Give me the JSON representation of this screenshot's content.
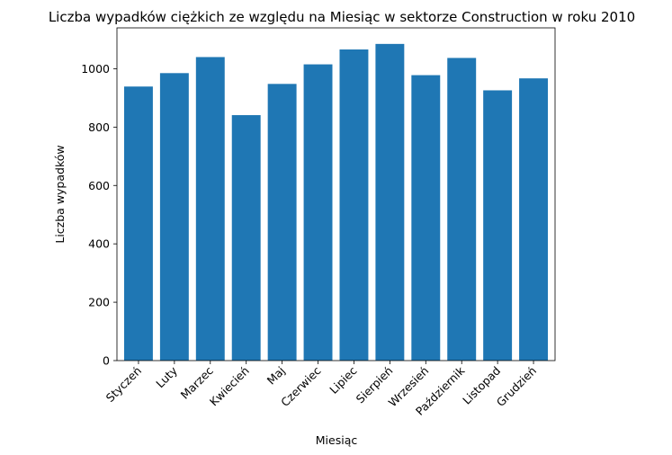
{
  "chart_data": {
    "type": "bar",
    "title": "Liczba wypadków ciężkich ze względu na Miesiąc w sektorze Construction w roku 2010",
    "xlabel": "Miesiąc",
    "ylabel": "Liczba wypadków",
    "categories": [
      "Styczeń",
      "Luty",
      "Marzec",
      "Kwiecień",
      "Maj",
      "Czerwiec",
      "Lipiec",
      "Sierpień",
      "Wrzesień",
      "Październik",
      "Listopad",
      "Grudzień"
    ],
    "values": [
      939,
      985,
      1040,
      841,
      948,
      1015,
      1066,
      1085,
      978,
      1037,
      926,
      967
    ],
    "ylim": [
      0,
      1140
    ],
    "yticks": [
      0,
      200,
      400,
      600,
      800,
      1000
    ],
    "grid": false,
    "bar_color": "#1f77b4",
    "x_tick_rotation_deg": 45
  }
}
